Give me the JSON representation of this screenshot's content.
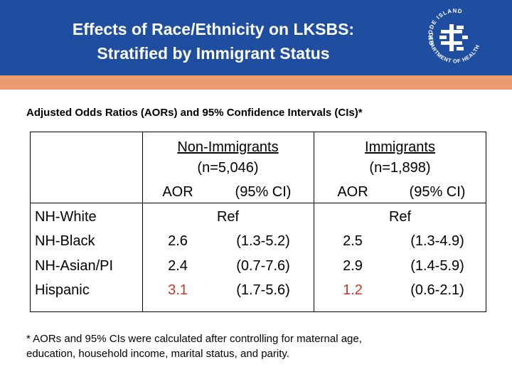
{
  "header": {
    "title_line1": "Effects of Race/Ethnicity on LKSBS:",
    "title_line2": "Stratified by Immigrant Status",
    "logo": {
      "icon": "ri-department-of-health-logo-icon",
      "top_text": "RHODE ISLAND",
      "bottom_text": "DEPARTMENT OF HEALTH"
    },
    "colors": {
      "band": "#1f4ea1",
      "stripe": "#ea9b70"
    }
  },
  "subtitle": "Adjusted Odds Ratios (AORs) and 95% Confidence Intervals (CIs)*",
  "table": {
    "groups": [
      {
        "name": "Non-Immigrants",
        "n": "(n=5,046)",
        "aor_header": "AOR",
        "ci_header": "(95% CI)"
      },
      {
        "name": "Immigrants",
        "n": "(n=1,898)",
        "aor_header": "AOR",
        "ci_header": "(95% CI)"
      }
    ],
    "rows": [
      {
        "label": "NH-White",
        "non_immigrants": {
          "ref": "Ref"
        },
        "immigrants": {
          "ref": "Ref"
        }
      },
      {
        "label": "NH-Black",
        "non_immigrants": {
          "aor": "2.6",
          "ci": "(1.3-5.2)"
        },
        "immigrants": {
          "aor": "2.5",
          "ci": "(1.3-4.9)"
        }
      },
      {
        "label": "NH-Asian/PI",
        "non_immigrants": {
          "aor": "2.4",
          "ci": "(0.7-7.6)"
        },
        "immigrants": {
          "aor": "2.9",
          "ci": "(1.4-5.9)"
        }
      },
      {
        "label": "Hispanic",
        "non_immigrants": {
          "aor": "3.1",
          "ci": "(1.7-5.6)"
        },
        "immigrants": {
          "aor": "1.2",
          "ci": "(0.6-2.1)"
        }
      }
    ],
    "highlight_color": "#c0392b"
  },
  "footnote": {
    "line1": "* AORs and 95% CIs were calculated after controlling for maternal age,",
    "line2": "education, household income, marital status, and parity."
  }
}
